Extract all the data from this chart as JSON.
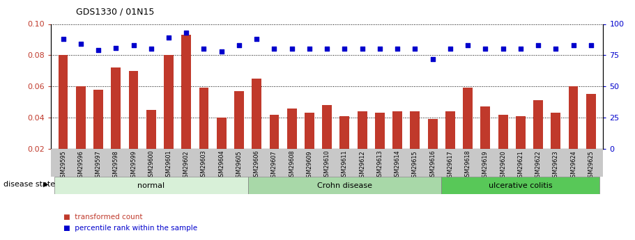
{
  "title": "GDS1330 / 01N15",
  "samples": [
    "GSM29595",
    "GSM29596",
    "GSM29597",
    "GSM29598",
    "GSM29599",
    "GSM29600",
    "GSM29601",
    "GSM29602",
    "GSM29603",
    "GSM29604",
    "GSM29605",
    "GSM29606",
    "GSM29607",
    "GSM29608",
    "GSM29609",
    "GSM29610",
    "GSM29611",
    "GSM29612",
    "GSM29613",
    "GSM29614",
    "GSM29615",
    "GSM29616",
    "GSM29617",
    "GSM29618",
    "GSM29619",
    "GSM29620",
    "GSM29621",
    "GSM29622",
    "GSM29623",
    "GSM29624",
    "GSM29625"
  ],
  "bar_values": [
    0.08,
    0.06,
    0.058,
    0.072,
    0.07,
    0.045,
    0.08,
    0.093,
    0.059,
    0.04,
    0.057,
    0.065,
    0.042,
    0.046,
    0.043,
    0.048,
    0.041,
    0.044,
    0.043,
    0.044,
    0.044,
    0.039,
    0.044,
    0.059,
    0.047,
    0.042,
    0.041,
    0.051,
    0.043,
    0.06,
    0.055
  ],
  "dot_values": [
    88,
    84,
    79,
    81,
    83,
    80,
    89,
    93,
    80,
    78,
    83,
    88,
    80,
    80,
    80,
    80,
    80,
    80,
    80,
    80,
    80,
    72,
    80,
    83,
    80,
    80,
    80,
    83,
    80,
    83,
    83
  ],
  "groups": [
    {
      "label": "normal",
      "start": 0,
      "end": 10,
      "color": "#d8f0d8"
    },
    {
      "label": "Crohn disease",
      "start": 11,
      "end": 21,
      "color": "#a8d8a8"
    },
    {
      "label": "ulcerative colitis",
      "start": 22,
      "end": 30,
      "color": "#58c858"
    }
  ],
  "ylim_left": [
    0.02,
    0.1
  ],
  "ylim_right": [
    0,
    100
  ],
  "yticks_left": [
    0.02,
    0.04,
    0.06,
    0.08,
    0.1
  ],
  "yticks_right": [
    0,
    25,
    50,
    75,
    100
  ],
  "bar_color": "#c0392b",
  "dot_color": "#0000cc",
  "bar_width": 0.55,
  "legend_bar_label": "transformed count",
  "legend_dot_label": "percentile rank within the sample",
  "disease_state_label": "disease state",
  "figsize": [
    9.11,
    3.45
  ],
  "dpi": 100
}
